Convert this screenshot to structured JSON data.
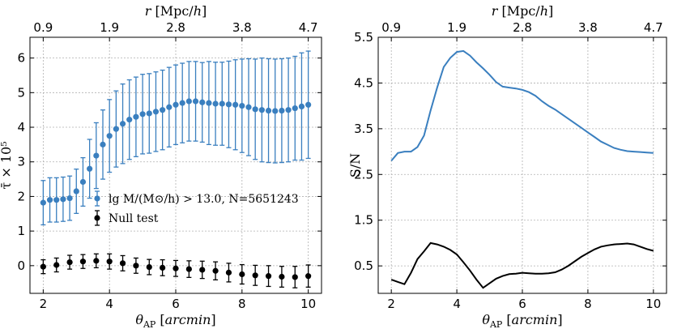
{
  "colors": {
    "blue": "#3a7fbf",
    "black": "#000000"
  },
  "chart_data": [
    {
      "type": "scatter",
      "xlabel": "θ_AP [arcmin]",
      "ylabel": "τ̄ × 10⁵",
      "top_xlabel": "r [Mpc/h]",
      "xlim": [
        1.6,
        10.4
      ],
      "ylim": [
        -0.8,
        6.6
      ],
      "xticks": [
        2,
        4,
        6,
        8,
        10
      ],
      "yticks": [
        0,
        1,
        2,
        3,
        4,
        5,
        6
      ],
      "top_ticks": [
        {
          "x": 2,
          "label": "0.9"
        },
        {
          "x": 4,
          "label": "1.9"
        },
        {
          "x": 6,
          "label": "2.8"
        },
        {
          "x": 8,
          "label": "3.8"
        },
        {
          "x": 10,
          "label": "4.7"
        }
      ],
      "grid": true,
      "legend_position": "center-right",
      "series": [
        {
          "name": "lg M/(M⊙/h) > 13.0, N=5651243",
          "color": "#3a7fbf",
          "points": [
            {
              "x": 2.0,
              "y": 1.82,
              "err": 0.64
            },
            {
              "x": 2.2,
              "y": 1.9,
              "err": 0.64
            },
            {
              "x": 2.4,
              "y": 1.9,
              "err": 0.64
            },
            {
              "x": 2.6,
              "y": 1.92,
              "err": 0.64
            },
            {
              "x": 2.8,
              "y": 1.95,
              "err": 0.64
            },
            {
              "x": 3.0,
              "y": 2.15,
              "err": 0.64
            },
            {
              "x": 3.2,
              "y": 2.42,
              "err": 0.7
            },
            {
              "x": 3.4,
              "y": 2.8,
              "err": 0.85
            },
            {
              "x": 3.6,
              "y": 3.18,
              "err": 0.95
            },
            {
              "x": 3.8,
              "y": 3.5,
              "err": 1.0
            },
            {
              "x": 4.0,
              "y": 3.75,
              "err": 1.05
            },
            {
              "x": 4.2,
              "y": 3.95,
              "err": 1.1
            },
            {
              "x": 4.4,
              "y": 4.1,
              "err": 1.15
            },
            {
              "x": 4.6,
              "y": 4.22,
              "err": 1.15
            },
            {
              "x": 4.8,
              "y": 4.3,
              "err": 1.15
            },
            {
              "x": 5.0,
              "y": 4.38,
              "err": 1.15
            },
            {
              "x": 5.2,
              "y": 4.4,
              "err": 1.15
            },
            {
              "x": 5.4,
              "y": 4.45,
              "err": 1.15
            },
            {
              "x": 5.6,
              "y": 4.5,
              "err": 1.15
            },
            {
              "x": 5.8,
              "y": 4.58,
              "err": 1.15
            },
            {
              "x": 6.0,
              "y": 4.65,
              "err": 1.15
            },
            {
              "x": 6.2,
              "y": 4.7,
              "err": 1.15
            },
            {
              "x": 6.4,
              "y": 4.75,
              "err": 1.15
            },
            {
              "x": 6.6,
              "y": 4.75,
              "err": 1.15
            },
            {
              "x": 6.8,
              "y": 4.72,
              "err": 1.15
            },
            {
              "x": 7.0,
              "y": 4.7,
              "err": 1.2
            },
            {
              "x": 7.2,
              "y": 4.68,
              "err": 1.2
            },
            {
              "x": 7.4,
              "y": 4.68,
              "err": 1.2
            },
            {
              "x": 7.6,
              "y": 4.66,
              "err": 1.25
            },
            {
              "x": 7.8,
              "y": 4.65,
              "err": 1.3
            },
            {
              "x": 8.0,
              "y": 4.62,
              "err": 1.35
            },
            {
              "x": 8.2,
              "y": 4.58,
              "err": 1.4
            },
            {
              "x": 8.4,
              "y": 4.52,
              "err": 1.45
            },
            {
              "x": 8.6,
              "y": 4.5,
              "err": 1.5
            },
            {
              "x": 8.8,
              "y": 4.48,
              "err": 1.5
            },
            {
              "x": 9.0,
              "y": 4.47,
              "err": 1.5
            },
            {
              "x": 9.2,
              "y": 4.48,
              "err": 1.5
            },
            {
              "x": 9.4,
              "y": 4.5,
              "err": 1.5
            },
            {
              "x": 9.6,
              "y": 4.55,
              "err": 1.5
            },
            {
              "x": 9.8,
              "y": 4.6,
              "err": 1.55
            },
            {
              "x": 10.0,
              "y": 4.65,
              "err": 1.55
            }
          ]
        },
        {
          "name": "Null test",
          "color": "#000000",
          "points": [
            {
              "x": 2.0,
              "y": -0.03,
              "err": 0.2
            },
            {
              "x": 2.4,
              "y": 0.02,
              "err": 0.2
            },
            {
              "x": 2.8,
              "y": 0.1,
              "err": 0.2
            },
            {
              "x": 3.2,
              "y": 0.12,
              "err": 0.2
            },
            {
              "x": 3.6,
              "y": 0.14,
              "err": 0.2
            },
            {
              "x": 4.0,
              "y": 0.12,
              "err": 0.22
            },
            {
              "x": 4.4,
              "y": 0.07,
              "err": 0.22
            },
            {
              "x": 4.8,
              "y": 0.0,
              "err": 0.22
            },
            {
              "x": 5.2,
              "y": -0.04,
              "err": 0.22
            },
            {
              "x": 5.6,
              "y": -0.06,
              "err": 0.23
            },
            {
              "x": 6.0,
              "y": -0.08,
              "err": 0.23
            },
            {
              "x": 6.4,
              "y": -0.1,
              "err": 0.24
            },
            {
              "x": 6.8,
              "y": -0.12,
              "err": 0.25
            },
            {
              "x": 7.2,
              "y": -0.15,
              "err": 0.26
            },
            {
              "x": 7.6,
              "y": -0.2,
              "err": 0.27
            },
            {
              "x": 8.0,
              "y": -0.25,
              "err": 0.28
            },
            {
              "x": 8.4,
              "y": -0.28,
              "err": 0.29
            },
            {
              "x": 8.8,
              "y": -0.3,
              "err": 0.3
            },
            {
              "x": 9.2,
              "y": -0.32,
              "err": 0.3
            },
            {
              "x": 9.6,
              "y": -0.33,
              "err": 0.31
            },
            {
              "x": 10.0,
              "y": -0.3,
              "err": 0.32
            }
          ]
        }
      ]
    },
    {
      "type": "line",
      "xlabel": "θ_AP [arcmin]",
      "ylabel": "S/N",
      "top_xlabel": "r [Mpc/h]",
      "xlim": [
        1.6,
        10.4
      ],
      "ylim": [
        -0.1,
        5.5
      ],
      "xticks": [
        2,
        4,
        6,
        8,
        10
      ],
      "yticks": [
        0.5,
        1.5,
        2.5,
        3.5,
        4.5,
        5.5
      ],
      "top_ticks": [
        {
          "x": 2,
          "label": "0.9"
        },
        {
          "x": 4,
          "label": "1.9"
        },
        {
          "x": 6,
          "label": "2.8"
        },
        {
          "x": 8,
          "label": "3.8"
        },
        {
          "x": 10,
          "label": "4.7"
        }
      ],
      "grid": true,
      "series": [
        {
          "color": "#3a7fbf",
          "x": [
            2.0,
            2.2,
            2.4,
            2.6,
            2.8,
            3.0,
            3.2,
            3.4,
            3.6,
            3.8,
            4.0,
            4.2,
            4.4,
            4.6,
            4.8,
            5.0,
            5.2,
            5.4,
            5.6,
            5.8,
            6.0,
            6.2,
            6.4,
            6.6,
            6.8,
            7.0,
            7.2,
            7.4,
            7.6,
            7.8,
            8.0,
            8.2,
            8.4,
            8.6,
            8.8,
            9.0,
            9.2,
            9.4,
            9.6,
            9.8,
            10.0
          ],
          "y": [
            2.8,
            2.97,
            3.0,
            3.0,
            3.1,
            3.35,
            3.9,
            4.4,
            4.85,
            5.05,
            5.18,
            5.2,
            5.1,
            4.95,
            4.82,
            4.68,
            4.52,
            4.42,
            4.4,
            4.38,
            4.35,
            4.3,
            4.22,
            4.1,
            4.0,
            3.92,
            3.82,
            3.72,
            3.62,
            3.52,
            3.42,
            3.32,
            3.22,
            3.15,
            3.08,
            3.04,
            3.01,
            3.0,
            2.99,
            2.98,
            2.97
          ]
        },
        {
          "color": "#000000",
          "x": [
            2.0,
            2.2,
            2.4,
            2.6,
            2.8,
            3.0,
            3.2,
            3.4,
            3.6,
            3.8,
            4.0,
            4.2,
            4.4,
            4.6,
            4.8,
            5.0,
            5.2,
            5.4,
            5.6,
            5.8,
            6.0,
            6.2,
            6.4,
            6.6,
            6.8,
            7.0,
            7.2,
            7.4,
            7.6,
            7.8,
            8.0,
            8.2,
            8.4,
            8.6,
            8.8,
            9.0,
            9.2,
            9.4,
            9.6,
            9.8,
            10.0
          ],
          "y": [
            0.2,
            0.15,
            0.1,
            0.35,
            0.65,
            0.82,
            1.0,
            0.97,
            0.92,
            0.85,
            0.75,
            0.58,
            0.4,
            0.2,
            0.02,
            0.12,
            0.22,
            0.28,
            0.32,
            0.33,
            0.35,
            0.34,
            0.33,
            0.33,
            0.34,
            0.36,
            0.42,
            0.5,
            0.6,
            0.7,
            0.78,
            0.86,
            0.92,
            0.95,
            0.97,
            0.98,
            0.99,
            0.97,
            0.92,
            0.87,
            0.83
          ]
        }
      ]
    }
  ]
}
